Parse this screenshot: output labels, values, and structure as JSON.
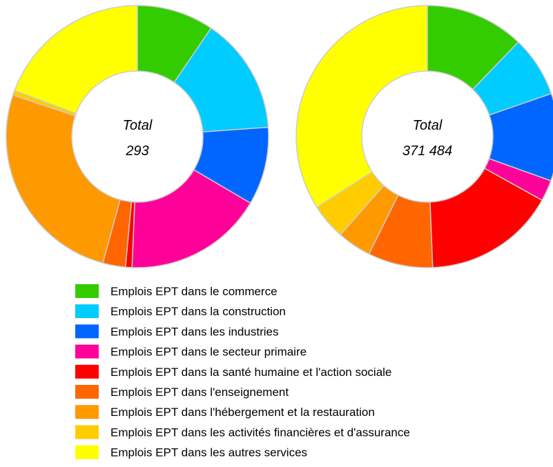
{
  "legend": {
    "labels": [
      "Emplois EPT dans le commerce",
      "Emplois EPT dans la construction",
      "Emplois EPT dans les industries",
      "Emplois EPT dans le secteur primaire",
      "Emplois EPT dans la santé humaine et l'action sociale",
      "Emplois EPT dans l'enseignement",
      "Emplois EPT dans l'hébergement et la restauration",
      "Emplois EPT dans les activités financières et d'assurance",
      "Emplois EPT dans les autres services"
    ],
    "colors": [
      "#33cc00",
      "#00ccff",
      "#0066ff",
      "#ff0099",
      "#ff0000",
      "#ff6600",
      "#ff9900",
      "#ffcc00",
      "#ffff00"
    ]
  },
  "chart_data": [
    {
      "type": "pie",
      "center_label": "Total",
      "total": "293",
      "values": [
        9.5,
        14.4,
        9.6,
        17.2,
        0.8,
        2.8,
        25.9,
        0.6,
        19.3
      ]
    },
    {
      "type": "pie",
      "center_label": "Total",
      "total": "371 484",
      "values": [
        12.2,
        7.5,
        10.8,
        2.6,
        16.3,
        8.0,
        4.2,
        4.4,
        34.1
      ]
    }
  ]
}
